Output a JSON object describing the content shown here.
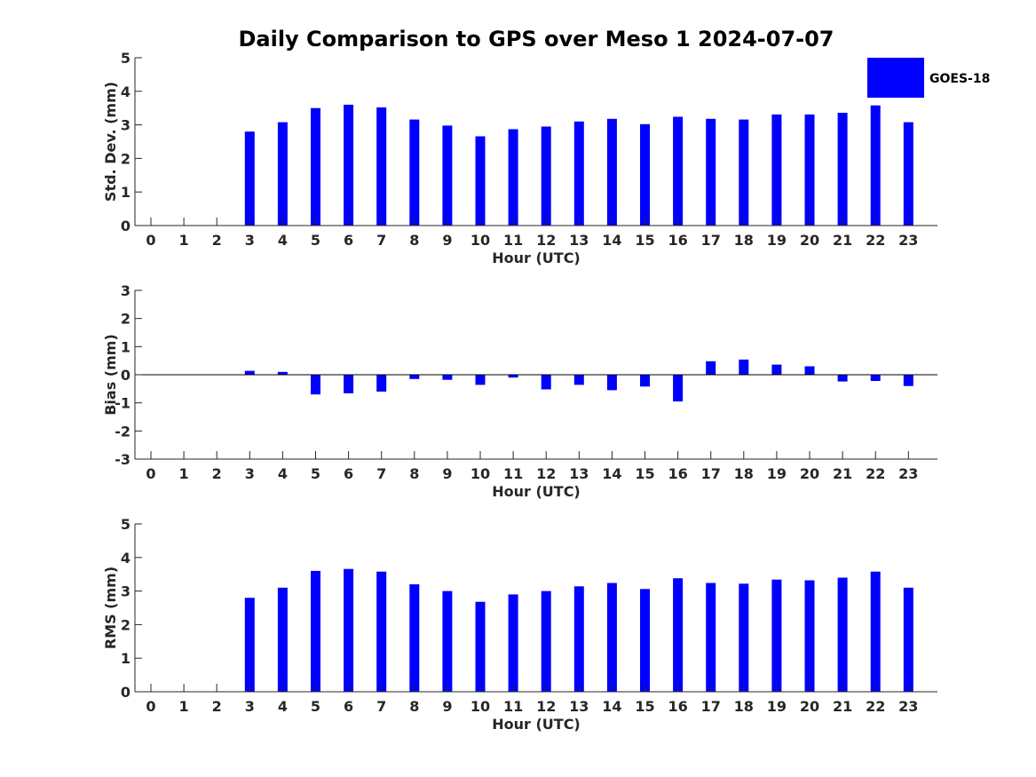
{
  "title": "Daily Comparison to GPS over Meso 1 2024-07-07",
  "legend": {
    "label": "GOES-18",
    "color": "#0000ff",
    "placement": "top-right"
  },
  "colors": {
    "bar": "#0000ff",
    "axis": "#262626",
    "background": "#ffffff"
  },
  "chart_data": [
    {
      "type": "bar",
      "xlabel": "Hour (UTC)",
      "ylabel": "Std. Dev. (mm)",
      "categories": [
        "0",
        "1",
        "2",
        "3",
        "4",
        "5",
        "6",
        "7",
        "8",
        "9",
        "10",
        "11",
        "12",
        "13",
        "14",
        "15",
        "16",
        "17",
        "18",
        "19",
        "20",
        "21",
        "22",
        "23"
      ],
      "yticks": [
        0,
        1,
        2,
        3,
        4,
        5
      ],
      "ylim": [
        0,
        5
      ],
      "grid": false,
      "series": [
        {
          "name": "GOES-18",
          "values": [
            null,
            null,
            null,
            2.8,
            3.08,
            3.5,
            3.6,
            3.52,
            3.16,
            2.98,
            2.66,
            2.87,
            2.95,
            3.1,
            3.18,
            3.02,
            3.24,
            3.18,
            3.16,
            3.31,
            3.31,
            3.36,
            3.58,
            3.08
          ]
        }
      ]
    },
    {
      "type": "bar",
      "xlabel": "Hour (UTC)",
      "ylabel": "Bias (mm)",
      "categories": [
        "0",
        "1",
        "2",
        "3",
        "4",
        "5",
        "6",
        "7",
        "8",
        "9",
        "10",
        "11",
        "12",
        "13",
        "14",
        "15",
        "16",
        "17",
        "18",
        "19",
        "20",
        "21",
        "22",
        "23"
      ],
      "yticks": [
        -3,
        -2,
        -1,
        0,
        1,
        2,
        3
      ],
      "ylim": [
        -3,
        3
      ],
      "grid": false,
      "series": [
        {
          "name": "GOES-18",
          "values": [
            null,
            null,
            null,
            0.14,
            0.1,
            -0.7,
            -0.66,
            -0.6,
            -0.15,
            -0.18,
            -0.36,
            -0.1,
            -0.52,
            -0.36,
            -0.55,
            -0.42,
            -0.95,
            0.48,
            0.54,
            0.36,
            0.3,
            -0.24,
            -0.22,
            -0.4
          ]
        }
      ]
    },
    {
      "type": "bar",
      "xlabel": "Hour (UTC)",
      "ylabel": "RMS (mm)",
      "categories": [
        "0",
        "1",
        "2",
        "3",
        "4",
        "5",
        "6",
        "7",
        "8",
        "9",
        "10",
        "11",
        "12",
        "13",
        "14",
        "15",
        "16",
        "17",
        "18",
        "19",
        "20",
        "21",
        "22",
        "23"
      ],
      "yticks": [
        0,
        1,
        2,
        3,
        4,
        5
      ],
      "ylim": [
        0,
        5
      ],
      "grid": false,
      "series": [
        {
          "name": "GOES-18",
          "values": [
            null,
            null,
            null,
            2.8,
            3.1,
            3.6,
            3.66,
            3.58,
            3.2,
            3.0,
            2.68,
            2.9,
            3.0,
            3.14,
            3.24,
            3.06,
            3.38,
            3.24,
            3.22,
            3.34,
            3.32,
            3.4,
            3.58,
            3.1
          ]
        }
      ]
    }
  ]
}
